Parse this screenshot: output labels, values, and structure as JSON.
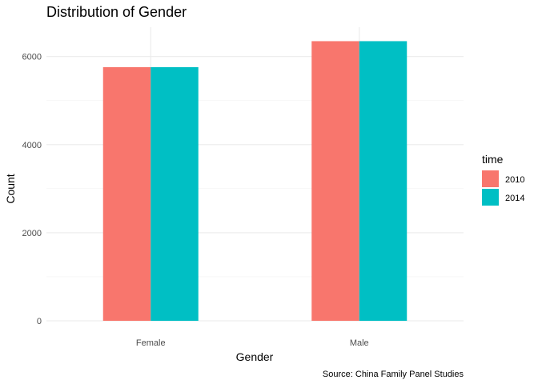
{
  "chart_data": {
    "type": "bar",
    "title": "Distribution of Gender",
    "xlabel": "Gender",
    "ylabel": "Count",
    "caption": "Source: China Family Panel Studies",
    "categories": [
      "Female",
      "Male"
    ],
    "series": [
      {
        "name": "2010",
        "values": [
          5760,
          6350
        ],
        "color": "#F8766D"
      },
      {
        "name": "2014",
        "values": [
          5760,
          6350
        ],
        "color": "#00BFC4"
      }
    ],
    "yticks": [
      0,
      2000,
      4000,
      6000
    ],
    "ytick_labels": [
      "0",
      "2000",
      "4000",
      "6000"
    ],
    "ylim": [
      0,
      6667
    ],
    "grid": true,
    "legend": {
      "title": "time",
      "position": "right"
    }
  }
}
